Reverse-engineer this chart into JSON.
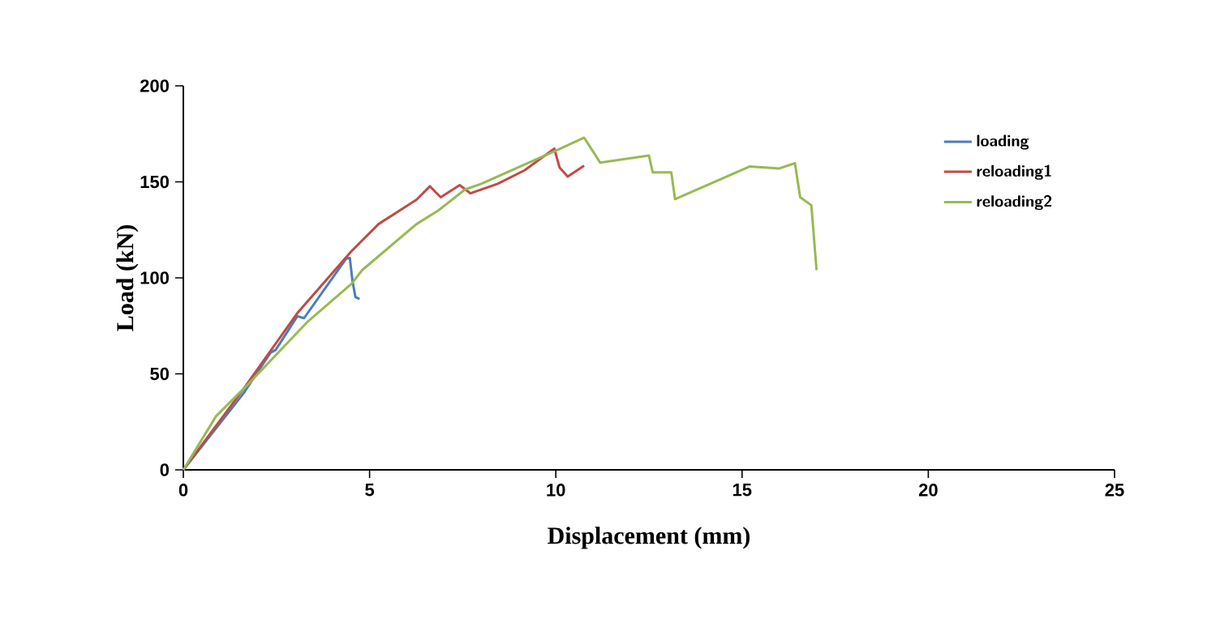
{
  "chart_data": {
    "type": "line",
    "xlabel": "Displacement (mm)",
    "ylabel": "Load (kN)",
    "xlim": [
      0,
      25
    ],
    "xticks": [
      0,
      5,
      10,
      15,
      20,
      25
    ],
    "ylim": [
      0,
      200
    ],
    "yticks": [
      0,
      50,
      100,
      150,
      200
    ],
    "legend": "right",
    "marker": "none",
    "line_style": "solid",
    "series": [
      {
        "name": "loading",
        "color": "#4a7ebb",
        "x": [
          0,
          1.61,
          2.34,
          2.48,
          3.06,
          3.24,
          4.37,
          4.47,
          4.54,
          4.62,
          4.73
        ],
        "values": [
          0,
          39.7,
          61,
          62.5,
          80,
          79,
          110,
          110.3,
          98.5,
          90,
          89
        ]
      },
      {
        "name": "reloading1",
        "color": "#be4b48",
        "x": [
          0,
          1.61,
          3.06,
          4.52,
          5.24,
          6.26,
          6.62,
          6.91,
          7.42,
          7.71,
          8.44,
          9.16,
          9.96,
          10.1,
          10.32,
          10.76
        ],
        "values": [
          0,
          42,
          81.6,
          114,
          128,
          140.7,
          147.7,
          142,
          148.3,
          144,
          149,
          156,
          167.3,
          157.5,
          152.7,
          158.4
        ]
      },
      {
        "name": "reloading2",
        "color": "#98b954",
        "x": [
          0,
          0.88,
          1.76,
          3.35,
          4.52,
          4.8,
          6.26,
          6.84,
          7.56,
          8.0,
          9.16,
          10.03,
          10.76,
          10.9,
          11.19,
          12.5,
          12.6,
          13.1,
          13.2,
          15.2,
          16.0,
          16.42,
          16.56,
          16.86,
          17.0
        ],
        "values": [
          0,
          28,
          45,
          77.4,
          97,
          104,
          128,
          135,
          146,
          149,
          159,
          166.5,
          173,
          168.8,
          160,
          163.7,
          155,
          155,
          141,
          158,
          157,
          159.7,
          142,
          137.8,
          104
        ]
      }
    ]
  }
}
